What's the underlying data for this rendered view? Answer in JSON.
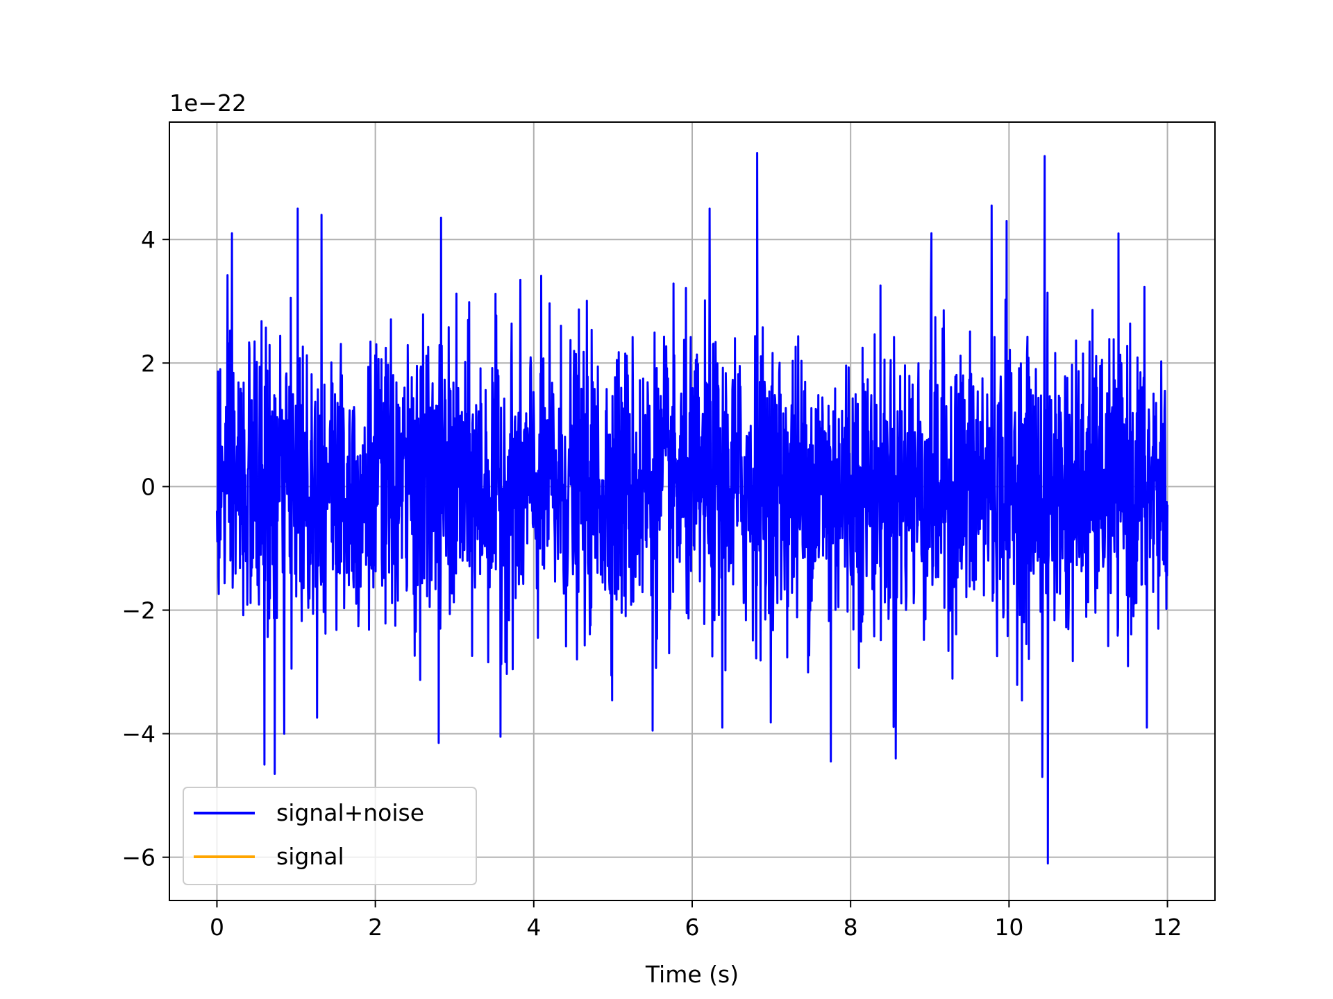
{
  "chart_data": {
    "type": "line",
    "title": "",
    "xlabel": "Time (s)",
    "ylabel": "",
    "y_offset_label": "1e−22",
    "xlim": [
      -0.6,
      12.6
    ],
    "ylim": [
      -6.7,
      5.9
    ],
    "x_ticks": [
      0,
      2,
      4,
      6,
      8,
      10,
      12
    ],
    "x_tick_labels": [
      "0",
      "2",
      "4",
      "6",
      "8",
      "10",
      "12"
    ],
    "y_ticks": [
      -6,
      -4,
      -2,
      0,
      2,
      4
    ],
    "y_tick_labels": [
      "−6",
      "−4",
      "−2",
      "0",
      "2",
      "4"
    ],
    "grid": true,
    "legend_position": "lower-left",
    "x_range": [
      0,
      12
    ],
    "series": [
      {
        "name": "signal+noise",
        "color": "#0000ff",
        "envelope": "noise: roughly within ±2 with spikes to about ±4.5",
        "peaks": [
          {
            "x": 6.82,
            "y": 5.4
          },
          {
            "x": 10.45,
            "y": 5.35
          },
          {
            "x": 1.02,
            "y": 4.5
          },
          {
            "x": 6.22,
            "y": 4.5
          },
          {
            "x": 9.78,
            "y": 4.55
          },
          {
            "x": 1.32,
            "y": 4.4
          },
          {
            "x": 2.83,
            "y": 4.35
          },
          {
            "x": 9.97,
            "y": 4.3
          },
          {
            "x": 0.19,
            "y": 4.1
          },
          {
            "x": 9.02,
            "y": 4.1
          },
          {
            "x": 10.49,
            "y": -6.1
          },
          {
            "x": 0.73,
            "y": -4.65
          },
          {
            "x": 0.6,
            "y": -4.5
          },
          {
            "x": 10.42,
            "y": -4.7
          },
          {
            "x": 7.75,
            "y": -4.45
          },
          {
            "x": 8.57,
            "y": -4.4
          },
          {
            "x": 2.8,
            "y": -4.15
          },
          {
            "x": 3.58,
            "y": -4.05
          },
          {
            "x": 0.85,
            "y": -4.0
          },
          {
            "x": 5.5,
            "y": -3.95
          },
          {
            "x": 6.38,
            "y": -3.9
          },
          {
            "x": 11.74,
            "y": -3.9
          }
        ]
      },
      {
        "name": "signal",
        "color": "#ffa500",
        "values": []
      }
    ]
  }
}
